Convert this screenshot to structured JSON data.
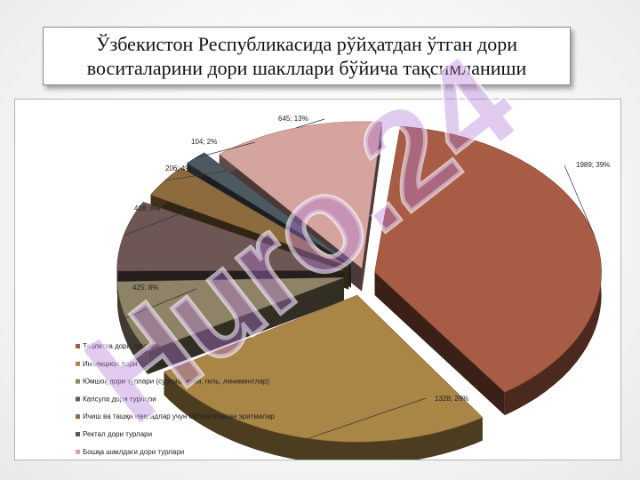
{
  "title": "Ўзбекистон Республикасида рўйҳатдан ўтган дори\nвоситаларини дори шакллари бўйича тақсимланиши",
  "watermark_text": "Huro.24",
  "chart_data": {
    "type": "pie",
    "title": "",
    "legend_position": "bottom-left",
    "exploded": true,
    "three_d": true,
    "slices": [
      {
        "name": "Таблетка дори турлари",
        "value": 1989,
        "percent": 39,
        "label": "1989; 39%",
        "color": "#a85c45"
      },
      {
        "name": "Инъекцион дори турлари",
        "value": 1328,
        "percent": 26,
        "label": "1328; 26%",
        "color": "#a98546"
      },
      {
        "name": "Юмшоқ дори турлари (суртма, крем, гель, линиментлар)",
        "value": 425,
        "percent": 8,
        "label": "425; 8%",
        "color": "#8e8267"
      },
      {
        "name": "Капсула дори турлари",
        "value": 418,
        "percent": 8,
        "label": "418; 8%",
        "color": "#6d5654"
      },
      {
        "name": "Ичиш ва ташқи мақсадлар учун мўлжалланган эритмалар",
        "value": 206,
        "percent": 4,
        "label": "206; 4%",
        "color": "#8e6b3f"
      },
      {
        "name": "Ректал дори турлари",
        "value": 104,
        "percent": 2,
        "label": "104; 2%",
        "color": "#4d5960"
      },
      {
        "name": "Бошқа шаклдаги дори турлари",
        "value": 645,
        "percent": 13,
        "label": "645; 13%",
        "color": "#d5a49f"
      }
    ]
  }
}
